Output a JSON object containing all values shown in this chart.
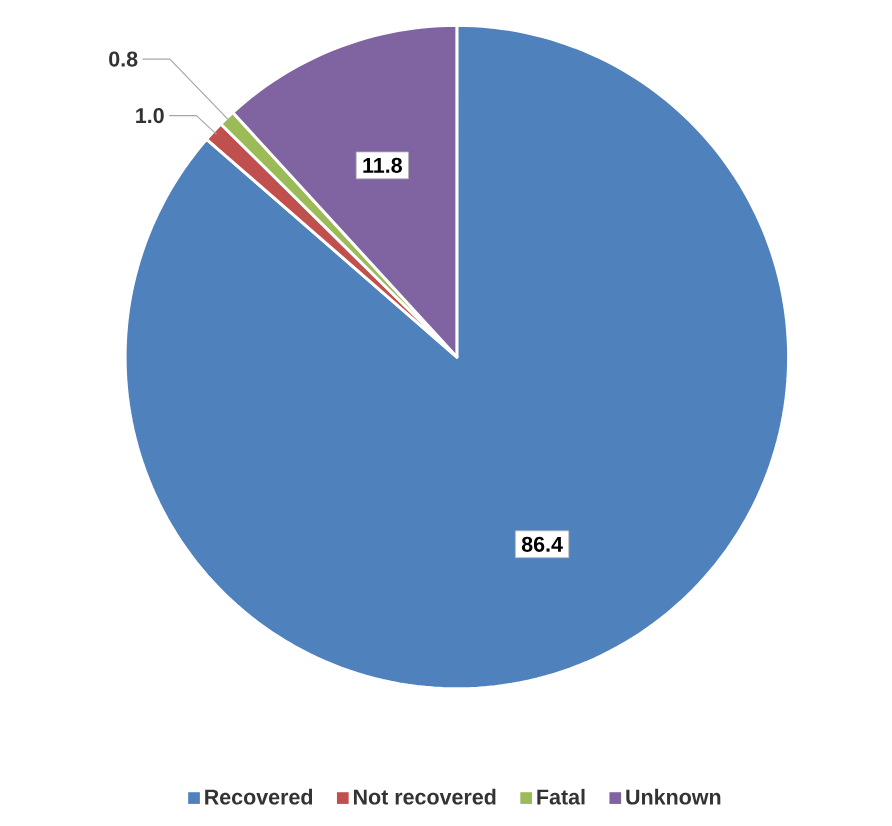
{
  "chart_data": {
    "type": "pie",
    "categories": [
      "Recovered",
      "Not recovered",
      "Fatal",
      "Unknown"
    ],
    "values": [
      86.4,
      1.0,
      0.8,
      11.8
    ],
    "colors": [
      "#4f81bd",
      "#c0504d",
      "#9bbb59",
      "#8064a2"
    ],
    "value_labels": [
      "86.4",
      "1.0",
      "0.8",
      "11.8"
    ],
    "legend": "bottom"
  }
}
